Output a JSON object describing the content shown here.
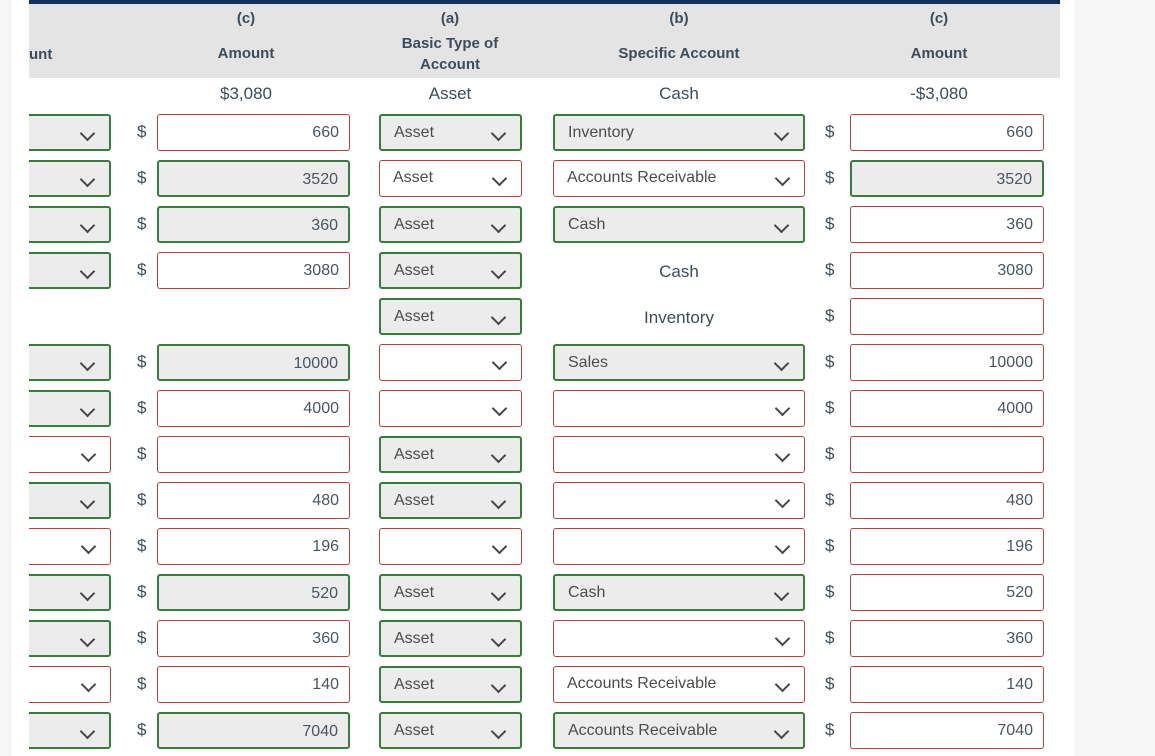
{
  "currency": "$",
  "colors": {
    "topbar_navy": "#14305a",
    "header_gray": "#e4e4e4",
    "incorrect_border_red": "#b2423e",
    "correct_border_green": "#377d3b",
    "correct_fill_gray": "#ececec",
    "text_dark": "#3d4c59"
  },
  "header": {
    "clipped_fragment": "unt",
    "columns": [
      {
        "tag": "(c)",
        "lines": [
          "Amount"
        ]
      },
      {
        "tag": "(a)",
        "lines": [
          "Basic Type of",
          "Account"
        ]
      },
      {
        "tag": "(b)",
        "lines": [
          "Specific Account"
        ]
      },
      {
        "tag": "(c)",
        "lines": [
          "Amount"
        ]
      }
    ]
  },
  "summary_values": [
    "$3,080",
    "Asset",
    "Cash",
    "-$3,080"
  ],
  "rows": [
    {
      "left_dd": "correct",
      "left_amount": {
        "value": "660",
        "state": "incorrect"
      },
      "basic": {
        "kind": "select",
        "value": "Asset",
        "state": "correct"
      },
      "specific": {
        "kind": "select",
        "value": "Inventory",
        "state": "correct"
      },
      "right_amount": {
        "value": "660",
        "state": "incorrect"
      }
    },
    {
      "left_dd": "correct",
      "left_amount": {
        "value": "3520",
        "state": "correct"
      },
      "basic": {
        "kind": "select",
        "value": "Asset",
        "state": "incorrect"
      },
      "specific": {
        "kind": "select",
        "value": "Accounts Receivable",
        "state": "incorrect"
      },
      "right_amount": {
        "value": "3520",
        "state": "correct"
      }
    },
    {
      "left_dd": "correct",
      "left_amount": {
        "value": "360",
        "state": "correct"
      },
      "basic": {
        "kind": "select",
        "value": "Asset",
        "state": "correct"
      },
      "specific": {
        "kind": "select",
        "value": "Cash",
        "state": "correct"
      },
      "right_amount": {
        "value": "360",
        "state": "incorrect"
      }
    },
    {
      "left_dd": "correct",
      "left_amount": {
        "value": "3080",
        "state": "incorrect"
      },
      "basic": {
        "kind": "select",
        "value": "Asset",
        "state": "correct"
      },
      "specific": {
        "kind": "static",
        "value": "Cash"
      },
      "right_amount": {
        "value": "3080",
        "state": "incorrect"
      }
    },
    {
      "left_dd": null,
      "left_amount": null,
      "basic": {
        "kind": "select",
        "value": "Asset",
        "state": "correct"
      },
      "specific": {
        "kind": "static",
        "value": "Inventory"
      },
      "right_amount": {
        "value": "",
        "state": "incorrect"
      }
    },
    {
      "left_dd": "correct",
      "left_amount": {
        "value": "10000",
        "state": "correct"
      },
      "basic": {
        "kind": "select",
        "value": "",
        "state": "incorrect"
      },
      "specific": {
        "kind": "select",
        "value": "Sales",
        "state": "correct"
      },
      "right_amount": {
        "value": "10000",
        "state": "incorrect"
      }
    },
    {
      "left_dd": "correct",
      "left_amount": {
        "value": "4000",
        "state": "incorrect"
      },
      "basic": {
        "kind": "select",
        "value": "",
        "state": "incorrect"
      },
      "specific": {
        "kind": "select",
        "value": "",
        "state": "incorrect"
      },
      "right_amount": {
        "value": "4000",
        "state": "incorrect"
      }
    },
    {
      "left_dd": "incorrect",
      "left_amount": {
        "value": "",
        "state": "incorrect"
      },
      "basic": {
        "kind": "select",
        "value": "Asset",
        "state": "correct"
      },
      "specific": {
        "kind": "select",
        "value": "",
        "state": "incorrect"
      },
      "right_amount": {
        "value": "",
        "state": "incorrect"
      }
    },
    {
      "left_dd": "correct",
      "left_amount": {
        "value": "480",
        "state": "incorrect"
      },
      "basic": {
        "kind": "select",
        "value": "Asset",
        "state": "correct"
      },
      "specific": {
        "kind": "select",
        "value": "",
        "state": "incorrect"
      },
      "right_amount": {
        "value": "480",
        "state": "incorrect"
      }
    },
    {
      "left_dd": "incorrect",
      "left_amount": {
        "value": "196",
        "state": "incorrect"
      },
      "basic": {
        "kind": "select",
        "value": "",
        "state": "incorrect"
      },
      "specific": {
        "kind": "select",
        "value": "",
        "state": "incorrect"
      },
      "right_amount": {
        "value": "196",
        "state": "incorrect"
      }
    },
    {
      "left_dd": "correct",
      "left_amount": {
        "value": "520",
        "state": "correct"
      },
      "basic": {
        "kind": "select",
        "value": "Asset",
        "state": "correct"
      },
      "specific": {
        "kind": "select",
        "value": "Cash",
        "state": "correct"
      },
      "right_amount": {
        "value": "520",
        "state": "incorrect"
      }
    },
    {
      "left_dd": "correct",
      "left_amount": {
        "value": "360",
        "state": "incorrect"
      },
      "basic": {
        "kind": "select",
        "value": "Asset",
        "state": "correct"
      },
      "specific": {
        "kind": "select",
        "value": "",
        "state": "incorrect"
      },
      "right_amount": {
        "value": "360",
        "state": "incorrect"
      }
    },
    {
      "left_dd": "incorrect",
      "left_amount": {
        "value": "140",
        "state": "incorrect"
      },
      "basic": {
        "kind": "select",
        "value": "Asset",
        "state": "correct"
      },
      "specific": {
        "kind": "select",
        "value": "Accounts Receivable",
        "state": "incorrect"
      },
      "right_amount": {
        "value": "140",
        "state": "incorrect"
      }
    },
    {
      "left_dd": "correct",
      "left_amount": {
        "value": "7040",
        "state": "correct"
      },
      "basic": {
        "kind": "select",
        "value": "Asset",
        "state": "correct"
      },
      "specific": {
        "kind": "select",
        "value": "Accounts Receivable",
        "state": "correct"
      },
      "right_amount": {
        "value": "7040",
        "state": "incorrect"
      }
    }
  ]
}
